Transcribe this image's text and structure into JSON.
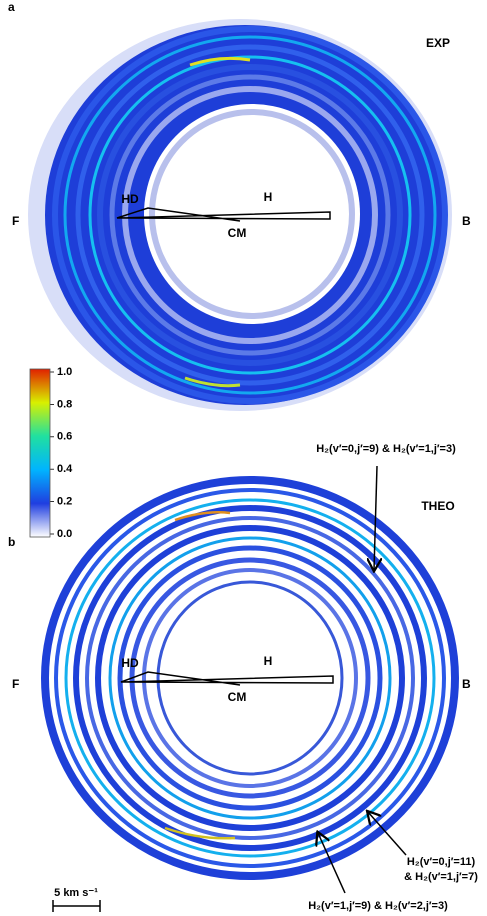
{
  "panels": [
    {
      "letter": "a",
      "tag": "EXP",
      "left": "F",
      "right": "B",
      "hd": "HD",
      "h": "H",
      "cm": "CM"
    },
    {
      "letter": "b",
      "tag": "THEO",
      "left": "F",
      "right": "B",
      "hd": "HD",
      "h": "H",
      "cm": "CM"
    }
  ],
  "colorbar": {
    "ticks": [
      "1.0",
      "0.8",
      "0.6",
      "0.4",
      "0.2",
      "0.0"
    ]
  },
  "annotations": [
    {
      "lines": [
        "H₂(v′=0,j′=9) & H₂(v′=1,j′=3)"
      ]
    },
    {
      "lines": [
        "H₂(v′=0,j′=11)",
        "& H₂(v′=1,j′=7)"
      ]
    },
    {
      "lines": [
        "H₂(v′=1,j′=9) & H₂(v′=2,j′=3)"
      ]
    }
  ],
  "scale_bar": "5 km s⁻¹"
}
